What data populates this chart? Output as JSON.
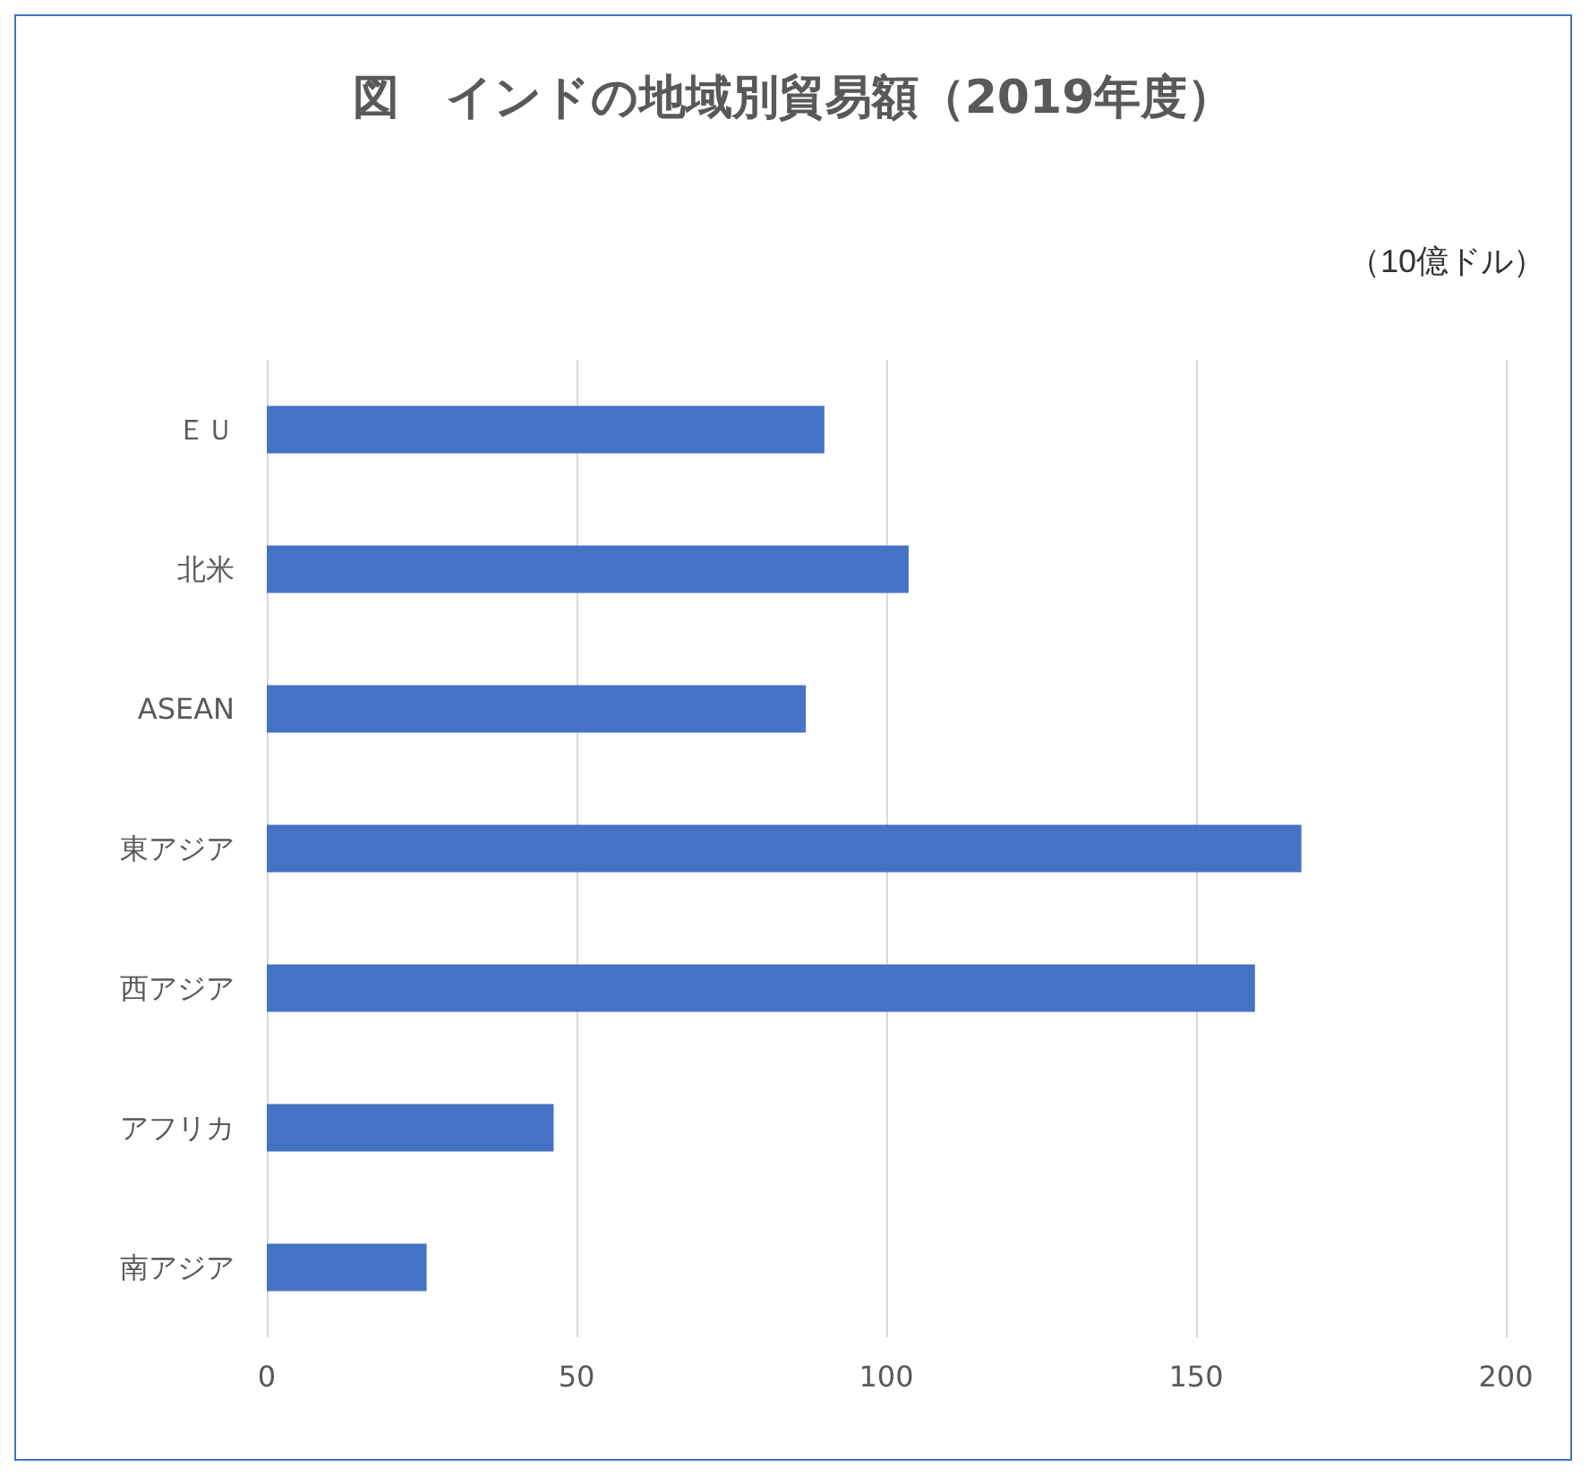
{
  "chart_data": {
    "type": "bar",
    "orientation": "horizontal",
    "title": "図　インドの地域別貿易額（2019年度）",
    "annotations": [
      "（10億ドル）"
    ],
    "categories": [
      "ＥＵ",
      "北米",
      "ASEAN",
      "東アジア",
      "西アジア",
      "アフリカ",
      "南アジア"
    ],
    "values": [
      90,
      103.6,
      87,
      167,
      159.5,
      46.3,
      25.8
    ],
    "color": "#4472c4",
    "xlim": [
      0,
      200
    ],
    "xticks": [
      0,
      50,
      100,
      150,
      200
    ],
    "grid": "x"
  }
}
